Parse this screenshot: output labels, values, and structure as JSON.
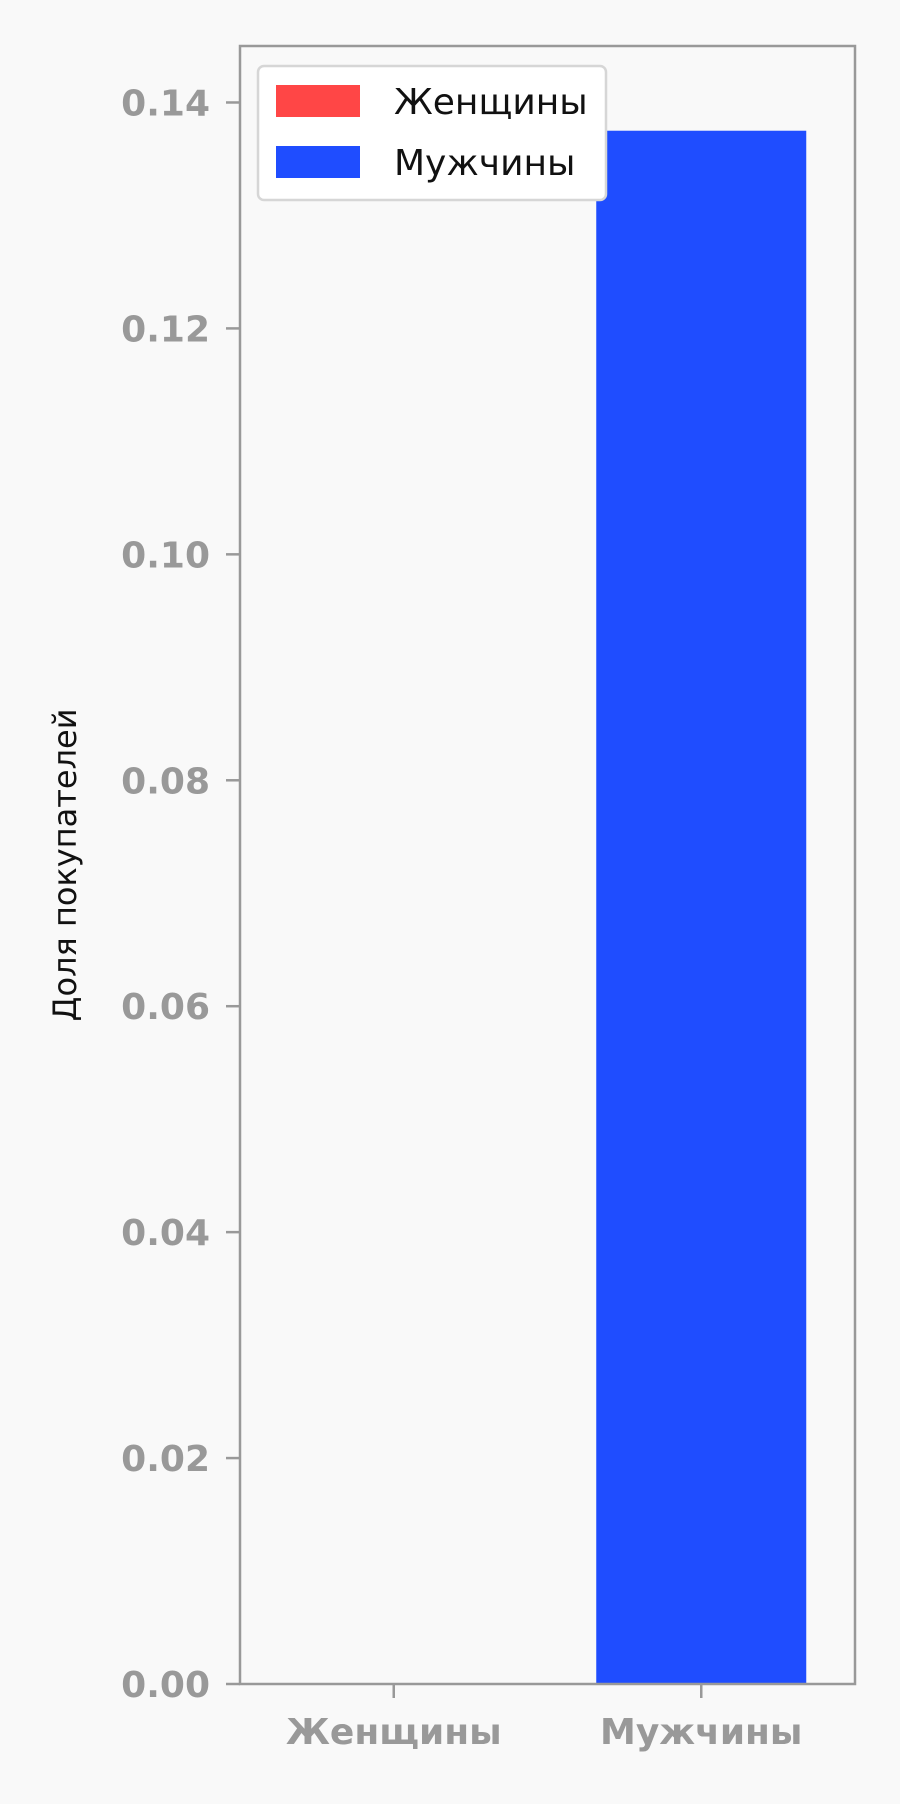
{
  "chart_data": {
    "type": "bar",
    "categories": [
      "Женщины",
      "Мужчины"
    ],
    "values": [
      0.0,
      0.1375
    ],
    "colors": [
      "#ff4646",
      "#1f4dff"
    ],
    "title": "",
    "xlabel": "",
    "ylabel": "Доля покупателей",
    "ylim": [
      0,
      0.145
    ],
    "yticks": [
      "0.00",
      "0.02",
      "0.04",
      "0.06",
      "0.08",
      "0.10",
      "0.12",
      "0.14"
    ],
    "ytick_values": [
      0,
      0.02,
      0.04,
      0.06,
      0.08,
      0.1,
      0.12,
      0.14
    ],
    "grid": false,
    "legend_position": "top-left",
    "legend": [
      {
        "label": "Женщины",
        "color": "#ff4646"
      },
      {
        "label": "Мужчины",
        "color": "#1f4dff"
      }
    ],
    "axis_color": "#999999",
    "background": "#f9f9f9"
  }
}
